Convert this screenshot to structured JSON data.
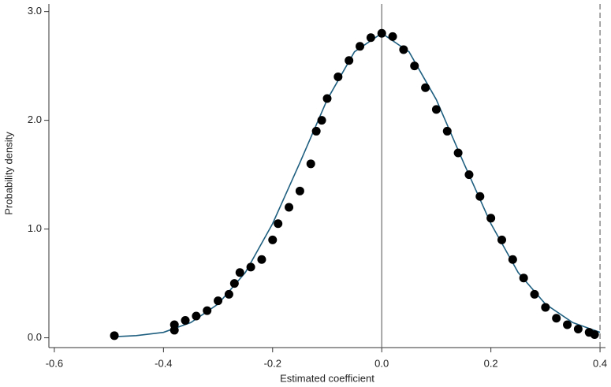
{
  "chart_data": {
    "type": "scatter",
    "xlabel": "Estimated coefficient",
    "ylabel": "Probability density",
    "xlim": [
      -0.61,
      0.41
    ],
    "ylim": [
      -0.09,
      3.07
    ],
    "xticks": [
      -0.6,
      -0.4,
      -0.2,
      {
        "value": 0,
        "label": "0.0"
      },
      0.2,
      0.4
    ],
    "yticks": [
      {
        "value": 0,
        "label": "0.0"
      },
      {
        "value": 1,
        "label": "1.0"
      },
      {
        "value": 2,
        "label": "2.0"
      },
      {
        "value": 3,
        "label": "3.0"
      }
    ],
    "vlines": [
      {
        "x": 0,
        "style": "solid",
        "color": "#777777"
      },
      {
        "x": 0.4,
        "style": "dashed",
        "color": "#777777"
      }
    ],
    "series": [
      {
        "mode": "line",
        "color": "#1f5f80",
        "x": [
          -0.49,
          -0.45,
          -0.4,
          -0.35,
          -0.3,
          -0.25,
          -0.2,
          -0.15,
          -0.1,
          -0.05,
          0,
          0.05,
          0.1,
          0.15,
          0.2,
          0.25,
          0.3,
          0.35,
          0.4
        ],
        "y": [
          0.01,
          0.02,
          0.05,
          0.14,
          0.31,
          0.6,
          1.05,
          1.61,
          2.19,
          2.63,
          2.8,
          2.63,
          2.19,
          1.61,
          1.05,
          0.6,
          0.31,
          0.14,
          0.05
        ]
      },
      {
        "mode": "markers",
        "color": "#000000",
        "x": [
          -0.49,
          -0.38,
          -0.38,
          -0.36,
          -0.34,
          -0.32,
          -0.3,
          -0.28,
          -0.27,
          -0.26,
          -0.24,
          -0.22,
          -0.2,
          -0.19,
          -0.17,
          -0.15,
          -0.13,
          -0.12,
          -0.11,
          -0.1,
          -0.08,
          -0.06,
          -0.04,
          -0.02,
          0,
          0.02,
          0.04,
          0.06,
          0.08,
          0.1,
          0.12,
          0.14,
          0.16,
          0.18,
          0.2,
          0.22,
          0.24,
          0.26,
          0.28,
          0.3,
          0.32,
          0.34,
          0.36,
          0.38,
          0.39
        ],
        "y": [
          0.02,
          0.07,
          0.12,
          0.16,
          0.2,
          0.25,
          0.34,
          0.4,
          0.5,
          0.6,
          0.65,
          0.72,
          0.9,
          1.05,
          1.2,
          1.35,
          1.6,
          1.9,
          2.0,
          2.2,
          2.4,
          2.55,
          2.68,
          2.76,
          2.8,
          2.77,
          2.65,
          2.5,
          2.3,
          2.1,
          1.9,
          1.7,
          1.5,
          1.3,
          1.1,
          0.9,
          0.72,
          0.55,
          0.4,
          0.28,
          0.18,
          0.12,
          0.08,
          0.05,
          0.03
        ]
      }
    ]
  }
}
